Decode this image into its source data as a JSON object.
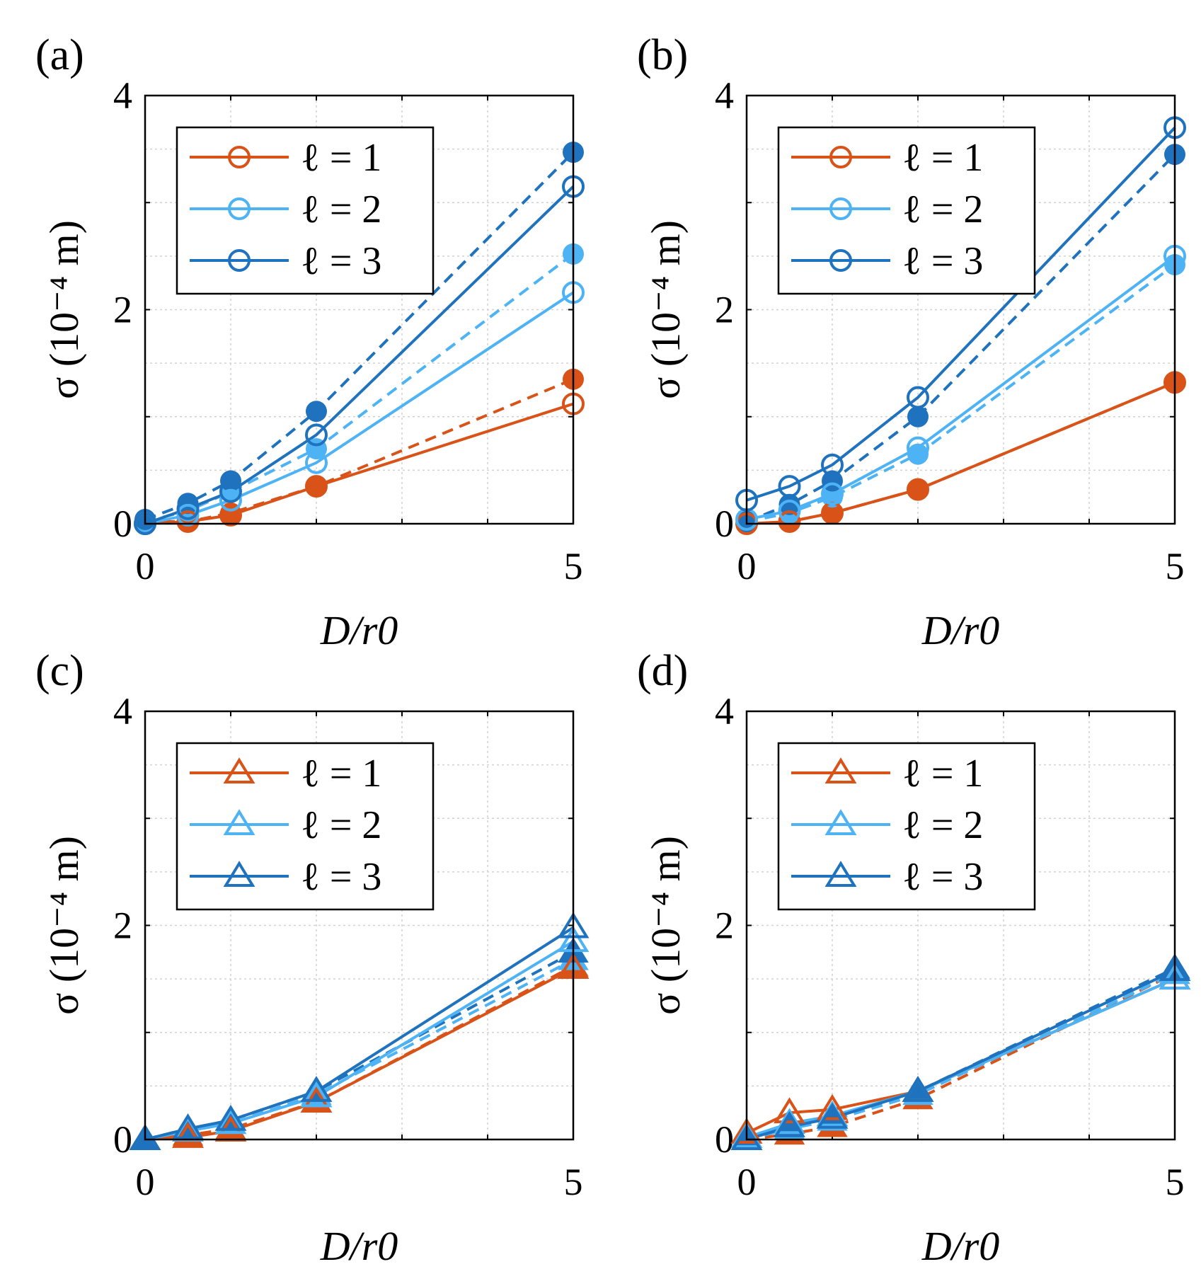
{
  "figure": {
    "description_labels": [
      "(a)",
      "(b)",
      "(c)",
      "(d)"
    ]
  },
  "colors": {
    "l1": "#D95319",
    "l2": "#4DB3F5",
    "l3": "#1F72BD",
    "grid": "#d2d2d2"
  },
  "chart_data": [
    {
      "panel": "(a)",
      "type": "line",
      "marker": "circle",
      "xlabel": "D/r0",
      "ylabel": "σ (10⁻⁴ m)",
      "xlim": [
        0,
        5
      ],
      "ylim": [
        0,
        4
      ],
      "xticks": [
        "0",
        "5"
      ],
      "yticks": [
        "0",
        "2",
        "4"
      ],
      "legend": [
        "ℓ = 1",
        "ℓ = 2",
        "ℓ = 3"
      ],
      "legend_position": "top-left",
      "x": [
        0,
        0.5,
        1,
        2,
        5
      ],
      "series": [
        {
          "name": "ℓ = 1",
          "style": "solid-open",
          "values": [
            0.0,
            0.02,
            0.08,
            0.35,
            1.12
          ]
        },
        {
          "name": "ℓ = 2",
          "style": "solid-open",
          "values": [
            0.0,
            0.08,
            0.22,
            0.57,
            2.16
          ]
        },
        {
          "name": "ℓ = 3",
          "style": "solid-open",
          "values": [
            0.0,
            0.14,
            0.3,
            0.83,
            3.15
          ]
        },
        {
          "name": "ℓ = 1",
          "style": "dashed-filled",
          "values": [
            0.02,
            0.02,
            0.1,
            0.35,
            1.35
          ]
        },
        {
          "name": "ℓ = 2",
          "style": "dashed-filled",
          "values": [
            0.02,
            0.12,
            0.3,
            0.7,
            2.52
          ]
        },
        {
          "name": "ℓ = 3",
          "style": "dashed-filled",
          "values": [
            0.04,
            0.19,
            0.4,
            1.05,
            3.47
          ]
        }
      ]
    },
    {
      "panel": "(b)",
      "type": "line",
      "marker": "circle",
      "xlabel": "D/r0",
      "ylabel": "σ (10⁻⁴ m)",
      "xlim": [
        0,
        5
      ],
      "ylim": [
        0,
        4
      ],
      "xticks": [
        "0",
        "5"
      ],
      "yticks": [
        "0",
        "2",
        "4"
      ],
      "legend": [
        "ℓ = 1",
        "ℓ = 2",
        "ℓ = 3"
      ],
      "legend_position": "top-left",
      "x": [
        0,
        0.5,
        1,
        2,
        5
      ],
      "series": [
        {
          "name": "ℓ = 1",
          "style": "solid-open",
          "values": [
            0.0,
            0.02,
            0.1,
            0.32,
            1.32
          ]
        },
        {
          "name": "ℓ = 2",
          "style": "solid-open",
          "values": [
            0.04,
            0.12,
            0.28,
            0.71,
            2.5
          ]
        },
        {
          "name": "ℓ = 3",
          "style": "solid-open",
          "values": [
            0.22,
            0.35,
            0.55,
            1.18,
            3.7
          ]
        },
        {
          "name": "ℓ = 1",
          "style": "dashed-filled",
          "values": [
            0.0,
            0.02,
            0.1,
            0.32,
            1.32
          ]
        },
        {
          "name": "ℓ = 2",
          "style": "dashed-filled",
          "values": [
            0.02,
            0.1,
            0.25,
            0.65,
            2.42
          ]
        },
        {
          "name": "ℓ = 3",
          "style": "dashed-filled",
          "values": [
            0.02,
            0.18,
            0.4,
            1.0,
            3.45
          ]
        }
      ]
    },
    {
      "panel": "(c)",
      "type": "line",
      "marker": "triangle",
      "xlabel": "D/r0",
      "ylabel": "σ (10⁻⁴ m)",
      "xlim": [
        0,
        5
      ],
      "ylim": [
        0,
        4
      ],
      "xticks": [
        "0",
        "5"
      ],
      "yticks": [
        "0",
        "2",
        "4"
      ],
      "legend": [
        "ℓ = 1",
        "ℓ = 2",
        "ℓ = 3"
      ],
      "legend_position": "top-left",
      "x": [
        0,
        0.5,
        1,
        2,
        5
      ],
      "series": [
        {
          "name": "ℓ = 1",
          "style": "solid-open",
          "values": [
            0.0,
            0.02,
            0.08,
            0.35,
            1.6
          ]
        },
        {
          "name": "ℓ = 2",
          "style": "solid-open",
          "values": [
            0.0,
            0.08,
            0.15,
            0.4,
            1.85
          ]
        },
        {
          "name": "ℓ = 3",
          "style": "solid-open",
          "values": [
            0.0,
            0.1,
            0.18,
            0.45,
            1.98
          ]
        },
        {
          "name": "ℓ = 1",
          "style": "dashed-filled",
          "values": [
            0.0,
            0.04,
            0.1,
            0.35,
            1.62
          ]
        },
        {
          "name": "ℓ = 2",
          "style": "dashed-filled",
          "values": [
            0.0,
            0.08,
            0.15,
            0.42,
            1.68
          ]
        },
        {
          "name": "ℓ = 3",
          "style": "dashed-filled",
          "values": [
            0.0,
            0.1,
            0.18,
            0.45,
            1.75
          ]
        }
      ]
    },
    {
      "panel": "(d)",
      "type": "line",
      "marker": "triangle",
      "xlabel": "D/r0",
      "ylabel": "σ (10⁻⁴ m)",
      "xlim": [
        0,
        5
      ],
      "ylim": [
        0,
        4
      ],
      "xticks": [
        "0",
        "5"
      ],
      "yticks": [
        "0",
        "2",
        "4"
      ],
      "legend": [
        "ℓ = 1",
        "ℓ = 2",
        "ℓ = 3"
      ],
      "legend_position": "top-left",
      "x": [
        0,
        0.5,
        1,
        2,
        5
      ],
      "series": [
        {
          "name": "ℓ = 1",
          "style": "solid-open",
          "values": [
            0.06,
            0.25,
            0.28,
            0.45,
            1.5
          ]
        },
        {
          "name": "ℓ = 2",
          "style": "solid-open",
          "values": [
            0.02,
            0.15,
            0.22,
            0.45,
            1.5
          ]
        },
        {
          "name": "ℓ = 3",
          "style": "solid-open",
          "values": [
            0.0,
            0.12,
            0.2,
            0.45,
            1.58
          ]
        },
        {
          "name": "ℓ = 1",
          "style": "dashed-filled",
          "values": [
            0.0,
            0.05,
            0.12,
            0.38,
            1.55
          ]
        },
        {
          "name": "ℓ = 2",
          "style": "dashed-filled",
          "values": [
            0.0,
            0.1,
            0.18,
            0.42,
            1.55
          ]
        },
        {
          "name": "ℓ = 3",
          "style": "dashed-filled",
          "values": [
            0.0,
            0.12,
            0.2,
            0.45,
            1.6
          ]
        }
      ]
    }
  ]
}
